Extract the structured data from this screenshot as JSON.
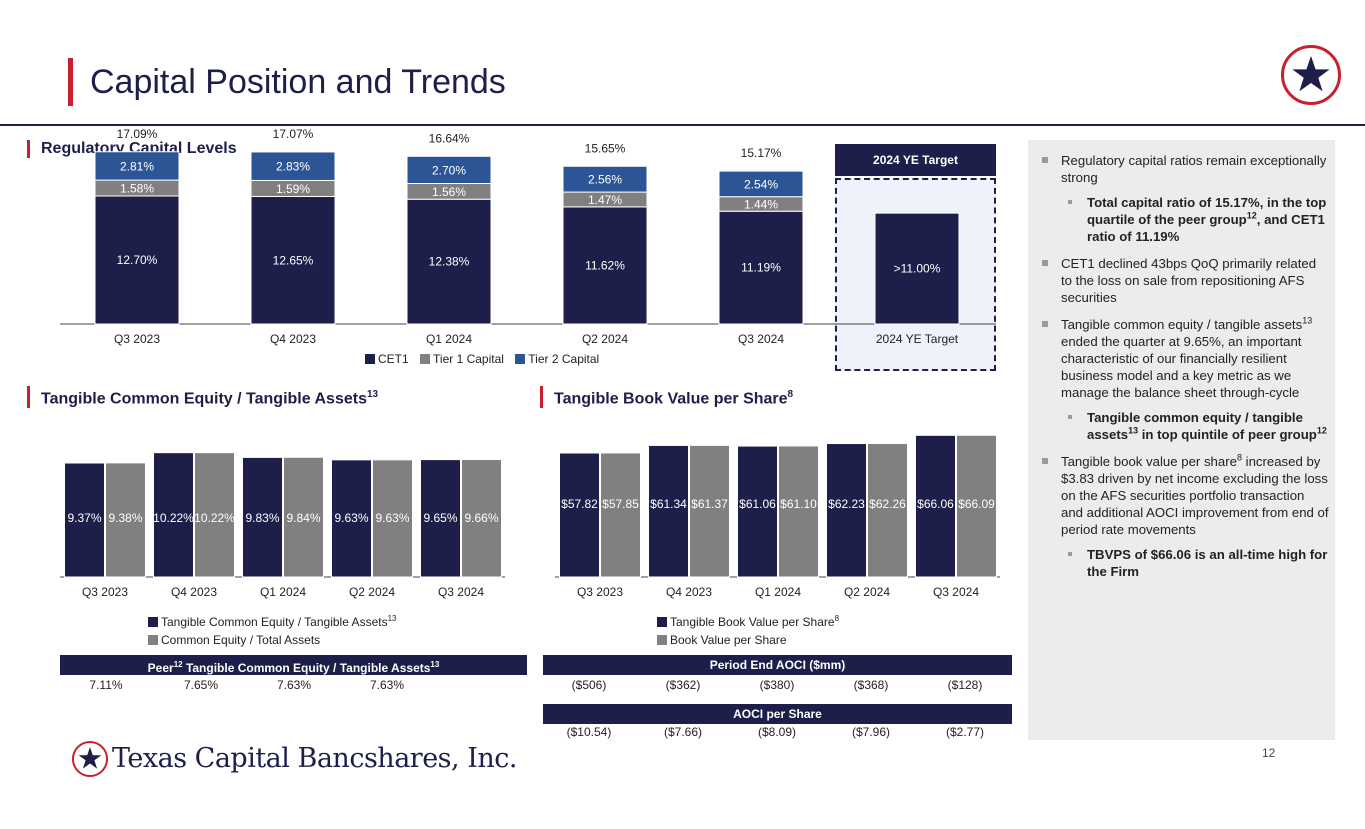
{
  "page": {
    "title": "Capital Position and Trends",
    "page_number": "12",
    "company": "Texas Capital Bancshares, Inc."
  },
  "sections": {
    "reg_capital": "Regulatory Capital Levels",
    "tce": "Tangible Common Equity / Tangible Assets",
    "tce_sup": "13",
    "tbv": "Tangible Book Value per Share",
    "tbv_sup": "8"
  },
  "target_header": "2024 YE Target",
  "bands": {
    "peer_label_pre": "Peer",
    "peer_sup": "12",
    "peer_label_mid": " Tangible Common Equity / Tangible Assets",
    "peer_sup2": "13",
    "peer_values": [
      "7.11%",
      "7.65%",
      "7.63%",
      "7.63%"
    ],
    "aoci_label": "Period End AOCI ($mm)",
    "aoci_values": [
      "($506)",
      "($362)",
      "($380)",
      "($368)",
      "($128)"
    ],
    "aoci_ps_label": "AOCI per Share",
    "aoci_ps_values": [
      "($10.54)",
      "($7.66)",
      "($8.09)",
      "($7.96)",
      "($2.77)"
    ]
  },
  "legends": {
    "reg": [
      "CET1",
      "Tier 1 Capital",
      "Tier 2 Capital"
    ],
    "tce": [
      "Tangible Common Equity / Tangible Assets",
      "Common Equity / Total Assets"
    ],
    "tce_sup": "13",
    "tbv": [
      "Tangible Book Value per Share",
      "Book Value per Share"
    ],
    "tbv_sup": "8"
  },
  "bullets": {
    "b1": "Regulatory capital ratios remain exceptionally strong",
    "b1a_pre": "Total capital ratio of 15.17%, in the top quartile of the peer group",
    "b1a_sup": "12",
    "b1a_post": ", and CET1 ratio of 11.19%",
    "b2": "CET1 declined 43bps QoQ primarily related to the loss on sale from repositioning AFS securities",
    "b3_pre": "Tangible common equity / tangible assets",
    "b3_sup": "13",
    "b3_post": " ended the quarter at 9.65%, an important characteristic of our financially resilient business model and a key metric as we manage the balance sheet through-cycle",
    "b3a_pre": "Tangible common equity / tangible assets",
    "b3a_sup": "13",
    "b3a_mid": " in top quintile of peer group",
    "b3a_sup2": "12",
    "b4_pre": "Tangible book value per share",
    "b4_sup": "8",
    "b4_post": " increased by $3.83 driven by net income excluding the loss on the AFS securities portfolio transaction and additional AOCI improvement from end of period rate movements",
    "b4a": "TBVPS of $66.06 is an all-time high for the Firm"
  },
  "colors": {
    "navy": "#1d1f4a",
    "gray": "#808080",
    "blue": "#2c5596",
    "red": "#c8202f"
  },
  "chart_data": [
    {
      "type": "bar",
      "stacked": true,
      "title": "Regulatory Capital Levels",
      "categories": [
        "Q3 2023",
        "Q4 2023",
        "Q1 2024",
        "Q2 2024",
        "Q3 2024",
        "2024 YE Target"
      ],
      "series": [
        {
          "name": "CET1",
          "values": [
            12.7,
            12.65,
            12.38,
            11.62,
            11.19,
            11.0
          ],
          "labels": [
            "12.70%",
            "12.65%",
            "12.38%",
            "11.62%",
            "11.19%",
            ">11.00%"
          ]
        },
        {
          "name": "Tier 1 Capital",
          "values": [
            1.58,
            1.59,
            1.56,
            1.47,
            1.44,
            null
          ],
          "labels": [
            "1.58%",
            "1.59%",
            "1.56%",
            "1.47%",
            "1.44%",
            ""
          ]
        },
        {
          "name": "Tier 2 Capital",
          "values": [
            2.81,
            2.83,
            2.7,
            2.56,
            2.54,
            null
          ],
          "labels": [
            "2.81%",
            "2.83%",
            "2.70%",
            "2.56%",
            "2.54%",
            ""
          ]
        }
      ],
      "totals": [
        "17.09%",
        "17.07%",
        "16.64%",
        "15.65%",
        "15.17%",
        ""
      ],
      "ylim": [
        0,
        17.5
      ]
    },
    {
      "type": "bar",
      "title": "Tangible Common Equity / Tangible Assets",
      "categories": [
        "Q3 2023",
        "Q4 2023",
        "Q1 2024",
        "Q2 2024",
        "Q3 2024"
      ],
      "series": [
        {
          "name": "Tangible Common Equity / Tangible Assets",
          "values": [
            9.37,
            10.22,
            9.83,
            9.63,
            9.65
          ],
          "labels": [
            "9.37%",
            "10.22%",
            "9.83%",
            "9.63%",
            "9.65%"
          ]
        },
        {
          "name": "Common Equity / Total Assets",
          "values": [
            9.38,
            10.22,
            9.84,
            9.63,
            9.66
          ],
          "labels": [
            "9.38%",
            "10.22%",
            "9.84%",
            "9.63%",
            "9.66%"
          ]
        }
      ],
      "ylim": [
        0,
        10.5
      ]
    },
    {
      "type": "bar",
      "title": "Tangible Book Value per Share",
      "categories": [
        "Q3 2023",
        "Q4 2023",
        "Q1 2024",
        "Q2 2024",
        "Q3 2024"
      ],
      "series": [
        {
          "name": "Tangible Book Value per Share",
          "values": [
            57.82,
            61.34,
            61.06,
            62.23,
            66.06
          ],
          "labels": [
            "$57.82",
            "$61.34",
            "$61.06",
            "$62.23",
            "$66.06"
          ]
        },
        {
          "name": "Book Value per Share",
          "values": [
            57.85,
            61.37,
            61.1,
            62.26,
            66.09
          ],
          "labels": [
            "$57.85",
            "$61.37",
            "$61.10",
            "$62.26",
            "$66.09"
          ]
        }
      ],
      "ylim": [
        0,
        70
      ]
    }
  ]
}
